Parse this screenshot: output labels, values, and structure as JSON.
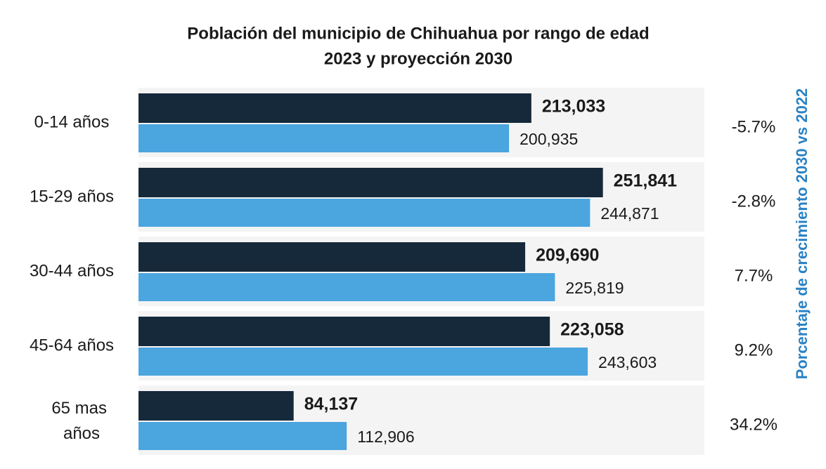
{
  "chart_data": {
    "type": "bar",
    "orientation": "horizontal",
    "title": [
      "Población del municipio de Chihuahua por rango de edad",
      "2023 y proyección 2030"
    ],
    "y2_label": "Porcentaje de crecimiento 2030 vs 2022",
    "categories": [
      "0-14 años",
      "15-29 años",
      "30-44 años",
      "45-64 años",
      "65 mas años"
    ],
    "xlim": [
      0,
      300000
    ],
    "series": [
      {
        "color": "#15293b",
        "values": [
          213033,
          251841,
          209690,
          223058,
          84137
        ],
        "value_labels": [
          "213,033",
          "251,841",
          "209,690",
          "223,058",
          "84,137"
        ]
      },
      {
        "color": "#4ba5de",
        "values": [
          200935,
          244871,
          225819,
          243603,
          112906
        ],
        "value_labels": [
          "200,935",
          "244,871",
          "225,819",
          "243,603",
          "112,906"
        ]
      }
    ],
    "growth": {
      "values": [
        -5.7,
        -2.8,
        7.7,
        9.2,
        34.2
      ],
      "value_labels": [
        "-5.7%",
        "-2.8%",
        "7.7%",
        "9.2%",
        "34.2%"
      ]
    },
    "y2_label_color": "#2a82c4"
  }
}
